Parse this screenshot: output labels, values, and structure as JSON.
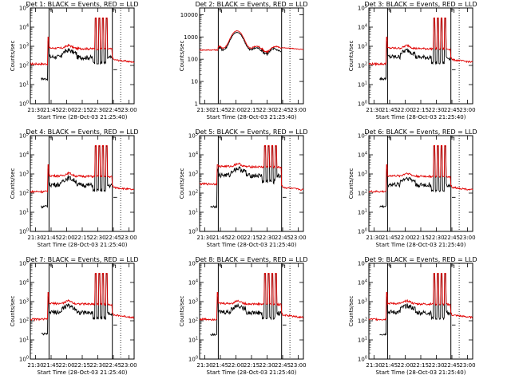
{
  "colors": {
    "events": "#000000",
    "lld": "#e00000",
    "background": "#ffffff"
  },
  "chart_data": [
    {
      "type": "line",
      "title": "Det 1: BLACK = Events, RED = LLD",
      "ylabel": "Counts/sec",
      "xlabel": "Start Time (28-Oct-03 21:25:40)",
      "xticks": [
        "21:30",
        "21:45",
        "22:00",
        "22:15",
        "22:30",
        "22:45",
        "23:00"
      ],
      "yscale": "log",
      "ylim": [
        1,
        100000
      ],
      "yticks": [
        "10^0",
        "10^1",
        "10^2",
        "10^3",
        "10^4",
        "10^5"
      ],
      "series": [
        {
          "name": "Events",
          "color": "#000000",
          "values": "profile"
        },
        {
          "name": "LLD",
          "color": "#e00000",
          "values": "profile"
        }
      ]
    },
    {
      "type": "line",
      "title": "Det 2: BLACK = Events, RED = LLD",
      "ylabel": "Counts/sec",
      "xlabel": "Start Time (28-Oct-03 21:25:40)",
      "xticks": [
        "21:30",
        "21:45",
        "22:00",
        "22:15",
        "22:30",
        "22:45",
        "23:00"
      ],
      "yscale": "log",
      "ylim": [
        1,
        20000
      ],
      "yticks": [
        "1",
        "10",
        "100",
        "1000",
        "10000"
      ],
      "series": [
        {
          "name": "Events",
          "color": "#000000"
        },
        {
          "name": "LLD",
          "color": "#e00000"
        }
      ]
    },
    {
      "type": "line",
      "title": "Det 3: BLACK = Events, RED = LLD",
      "ylabel": "Counts/sec",
      "xlabel": "Start Time (28-Oct-03 21:25:40)",
      "xticks": [
        "21:30",
        "21:45",
        "22:00",
        "22:15",
        "22:30",
        "22:45",
        "23:00"
      ],
      "yscale": "log",
      "ylim": [
        1,
        100000
      ],
      "yticks": [
        "10^0",
        "10^1",
        "10^2",
        "10^3",
        "10^4",
        "10^5"
      ],
      "series": [
        {
          "name": "Events",
          "color": "#000000"
        },
        {
          "name": "LLD",
          "color": "#e00000"
        }
      ]
    },
    {
      "type": "line",
      "title": "Det 4: BLACK = Events, RED = LLD",
      "ylabel": "Counts/sec",
      "xlabel": "Start Time (28-Oct-03 21:25:40)",
      "xticks": [
        "21:30",
        "21:45",
        "22:00",
        "22:15",
        "22:30",
        "22:45",
        "23:00"
      ],
      "yscale": "log",
      "ylim": [
        1,
        100000
      ],
      "yticks": [
        "10^0",
        "10^1",
        "10^2",
        "10^3",
        "10^4",
        "10^5"
      ],
      "series": [
        {
          "name": "Events",
          "color": "#000000"
        },
        {
          "name": "LLD",
          "color": "#e00000"
        }
      ]
    },
    {
      "type": "line",
      "title": "Det 5: BLACK = Events, RED = LLD",
      "ylabel": "Counts/sec",
      "xlabel": "Start Time (28-Oct-03 21:25:40)",
      "xticks": [
        "21:30",
        "21:45",
        "22:00",
        "22:15",
        "22:30",
        "22:45",
        "23:00"
      ],
      "yscale": "log",
      "ylim": [
        1,
        100000
      ],
      "yticks": [
        "10^0",
        "10^1",
        "10^2",
        "10^3",
        "10^4",
        "10^5"
      ],
      "series": [
        {
          "name": "Events",
          "color": "#000000"
        },
        {
          "name": "LLD",
          "color": "#e00000"
        }
      ]
    },
    {
      "type": "line",
      "title": "Det 6: BLACK = Events, RED = LLD",
      "ylabel": "Counts/sec",
      "xlabel": "Start Time (28-Oct-03 21:25:40)",
      "xticks": [
        "21:30",
        "21:45",
        "22:00",
        "22:15",
        "22:30",
        "22:45",
        "23:00"
      ],
      "yscale": "log",
      "ylim": [
        1,
        100000
      ],
      "yticks": [
        "10^0",
        "10^1",
        "10^2",
        "10^3",
        "10^4",
        "10^5"
      ],
      "series": [
        {
          "name": "Events",
          "color": "#000000"
        },
        {
          "name": "LLD",
          "color": "#e00000"
        }
      ]
    },
    {
      "type": "line",
      "title": "Det 7: BLACK = Events, RED = LLD",
      "ylabel": "Counts/sec",
      "xlabel": "Start Time (28-Oct-03 21:25:40)",
      "xticks": [
        "21:30",
        "21:45",
        "22:00",
        "22:15",
        "22:30",
        "22:45",
        "23:00"
      ],
      "yscale": "log",
      "ylim": [
        1,
        100000
      ],
      "yticks": [
        "10^0",
        "10^1",
        "10^2",
        "10^3",
        "10^4",
        "10^5"
      ],
      "series": [
        {
          "name": "Events",
          "color": "#000000"
        },
        {
          "name": "LLD",
          "color": "#e00000"
        }
      ]
    },
    {
      "type": "line",
      "title": "Det 8: BLACK = Events, RED = LLD",
      "ylabel": "Counts/sec",
      "xlabel": "Start Time (28-Oct-03 21:25:40)",
      "xticks": [
        "21:30",
        "21:45",
        "22:00",
        "22:15",
        "22:30",
        "22:45",
        "23:00"
      ],
      "yscale": "log",
      "ylim": [
        1,
        100000
      ],
      "yticks": [
        "10^0",
        "10^1",
        "10^2",
        "10^3",
        "10^4",
        "10^5"
      ],
      "series": [
        {
          "name": "Events",
          "color": "#000000"
        },
        {
          "name": "LLD",
          "color": "#e00000"
        }
      ]
    },
    {
      "type": "line",
      "title": "Det 9: BLACK = Events, RED = LLD",
      "ylabel": "Counts/sec",
      "xlabel": "Start Time (28-Oct-03 21:25:40)",
      "xticks": [
        "21:30",
        "21:45",
        "22:00",
        "22:15",
        "22:30",
        "22:45",
        "23:00"
      ],
      "yscale": "log",
      "ylim": [
        1,
        100000
      ],
      "yticks": [
        "10^0",
        "10^1",
        "10^2",
        "10^3",
        "10^4",
        "10^5"
      ],
      "series": [
        {
          "name": "Events",
          "color": "#000000"
        },
        {
          "name": "LLD",
          "color": "#e00000"
        }
      ]
    }
  ]
}
